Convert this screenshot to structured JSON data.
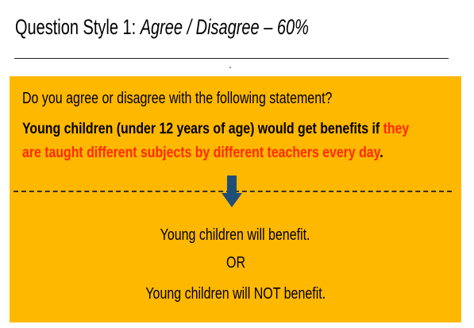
{
  "title": {
    "prefix": "Question Style 1: ",
    "emphasis": "Agree / Disagree – 60%"
  },
  "question": "Do you agree or disagree with the following statement?",
  "statement": {
    "line1_black": "Young children (under 12 years of age) would get benefits if ",
    "line1_red": "they",
    "line2_red": "are taught different subjects by different teachers every day",
    "line2_end": "."
  },
  "options": {
    "first": "Young children will benefit.",
    "separator": "OR",
    "second": "Young children will NOT benefit."
  },
  "colors": {
    "panel": "#ffb800",
    "highlight": "#ff2a00",
    "arrow": "#1f4e79"
  },
  "icons": {
    "arrow": "arrow-down-icon"
  }
}
